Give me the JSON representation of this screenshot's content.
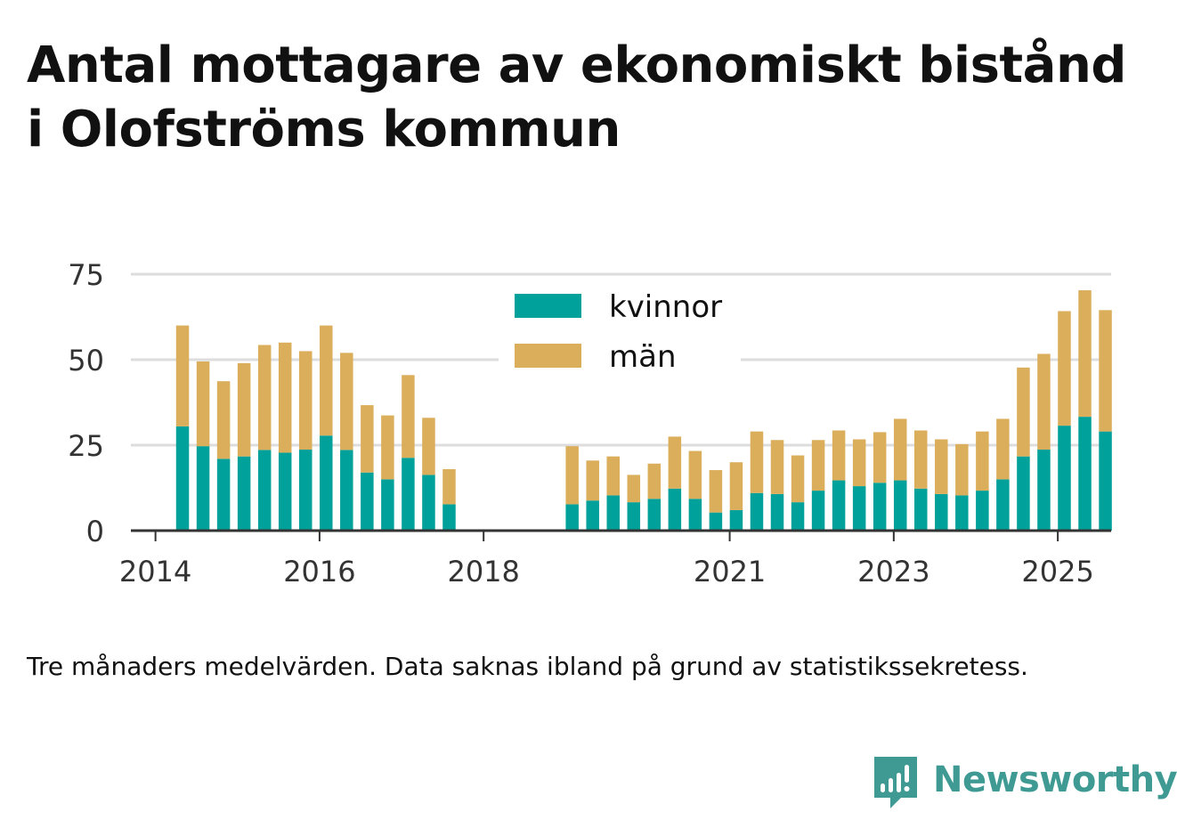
{
  "title": "Antal mottagare av ekonomiskt bistånd i Olofströms kommun",
  "footnote": "Tre månaders medelvärden. Data saknas ibland på grund av statistikssekretess.",
  "brand": {
    "name": "Newsworthy",
    "icon": "newsworthy-logo-icon",
    "color": "#3f9a94"
  },
  "chart_data": {
    "type": "bar",
    "stacked": true,
    "title": "Antal mottagare av ekonomiskt bistånd i Olofströms kommun",
    "xlabel": "",
    "ylabel": "",
    "ylim": [
      0,
      75
    ],
    "yticks": [
      0,
      25,
      50,
      75
    ],
    "grid": true,
    "legend_position": "top-center",
    "xlim": [
      2013.7,
      2025.65
    ],
    "xticks": [
      {
        "value": 2014.0,
        "label": "2014"
      },
      {
        "value": 2016.0,
        "label": "2016"
      },
      {
        "value": 2018.0,
        "label": "2018"
      },
      {
        "value": 2021.0,
        "label": "2021"
      },
      {
        "value": 2023.0,
        "label": "2023"
      },
      {
        "value": 2025.0,
        "label": "2025"
      }
    ],
    "x": [
      2014.33,
      2014.58,
      2014.83,
      2015.08,
      2015.33,
      2015.58,
      2015.83,
      2016.08,
      2016.33,
      2016.58,
      2016.83,
      2017.08,
      2017.33,
      2017.58,
      2019.08,
      2019.33,
      2019.58,
      2019.83,
      2020.08,
      2020.33,
      2020.58,
      2020.83,
      2021.08,
      2021.33,
      2021.58,
      2021.83,
      2022.08,
      2022.33,
      2022.58,
      2022.83,
      2023.08,
      2023.33,
      2023.58,
      2023.83,
      2024.08,
      2024.33,
      2024.58,
      2024.83,
      2025.08,
      2025.33,
      2025.58
    ],
    "series": [
      {
        "name": "kvinnor",
        "color": "#00a19a",
        "values": [
          30.5,
          24.7,
          21,
          21.7,
          23.6,
          22.8,
          23.7,
          27.8,
          23.6,
          17,
          15,
          21.3,
          16.3,
          7.7,
          7.7,
          8.8,
          10.3,
          8.3,
          9.3,
          12.3,
          9.3,
          5.3,
          6,
          11,
          10.7,
          8.3,
          11.7,
          14.7,
          13,
          14,
          14.7,
          12.3,
          10.7,
          10.3,
          11.7,
          15,
          21.7,
          23.7,
          30.7,
          33.3,
          29
        ]
      },
      {
        "name": "män",
        "color": "#dbae5c",
        "values": [
          29.5,
          24.8,
          22.7,
          27.3,
          30.7,
          32.2,
          28.8,
          32.2,
          28.4,
          19.7,
          18.7,
          24.2,
          16.7,
          10.3,
          17,
          11.7,
          11.4,
          8,
          10.3,
          15.2,
          14,
          12.4,
          14,
          18,
          15.8,
          13.7,
          14.8,
          14.6,
          13.7,
          14.8,
          18,
          17,
          16,
          15,
          17.3,
          17.7,
          26,
          28,
          33.5,
          37,
          35.5
        ]
      }
    ]
  }
}
